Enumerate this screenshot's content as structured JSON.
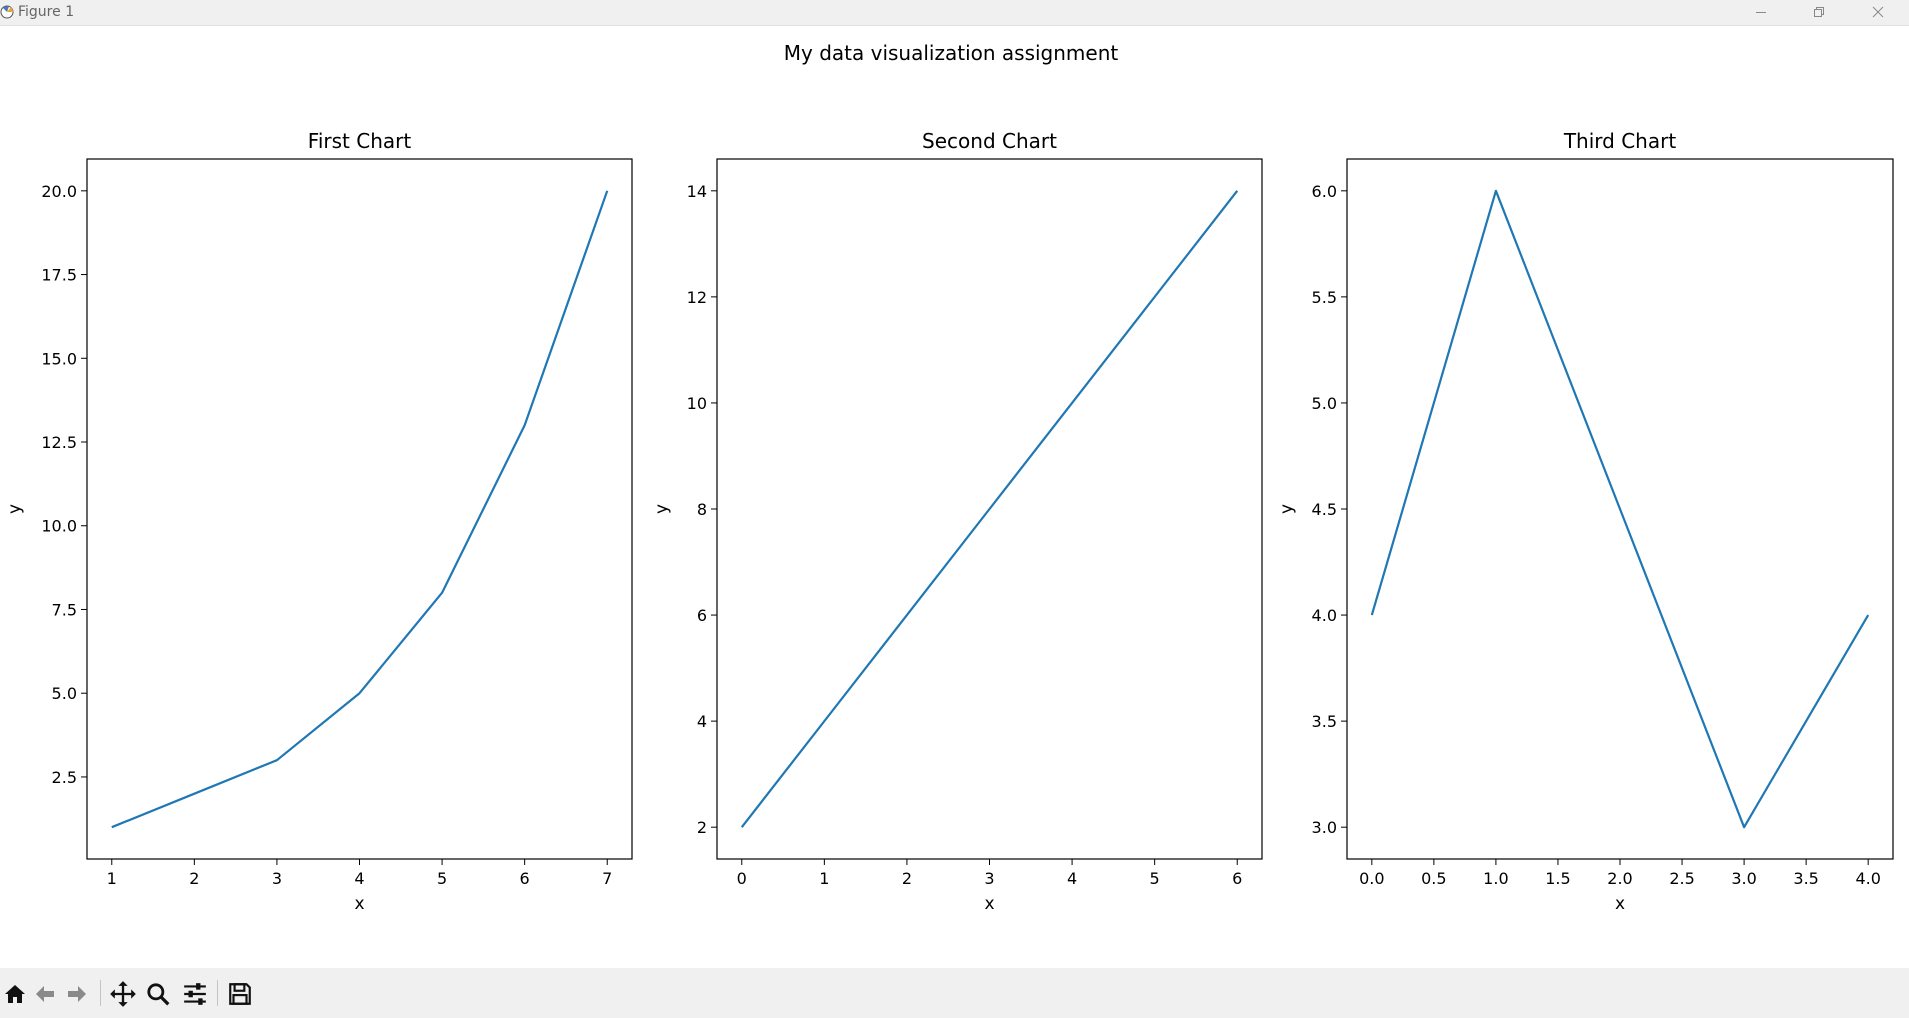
{
  "window": {
    "title": "Figure 1"
  },
  "figure": {
    "suptitle": "My data visualization assignment"
  },
  "colors": {
    "line": "#1f77b4",
    "axes": "#000000",
    "titlebar": "#f0f0f0",
    "toolbar": "#f0f0f0"
  },
  "toolbar": {
    "buttons": [
      "home-icon",
      "back-icon",
      "forward-icon",
      "pan-icon",
      "zoom-icon",
      "configure-subplots-icon",
      "save-icon"
    ]
  },
  "chart_data": [
    {
      "type": "line",
      "title": "First Chart",
      "xlabel": "x",
      "ylabel": "y",
      "x": [
        1,
        2,
        3,
        4,
        5,
        6,
        7
      ],
      "y": [
        1,
        2,
        3,
        5,
        8,
        13,
        20
      ],
      "xlim": [
        0.7,
        7.3
      ],
      "ylim": [
        0.05,
        20.95
      ],
      "xticks": [
        1,
        2,
        3,
        4,
        5,
        6,
        7
      ],
      "xtick_labels": [
        "1",
        "2",
        "3",
        "4",
        "5",
        "6",
        "7"
      ],
      "yticks": [
        2.5,
        5,
        7.5,
        10,
        12.5,
        15,
        17.5,
        20
      ],
      "ytick_labels": [
        "2.5",
        "5.0",
        "7.5",
        "10.0",
        "12.5",
        "15.0",
        "17.5",
        "20.0"
      ],
      "grid": false
    },
    {
      "type": "line",
      "title": "Second Chart",
      "xlabel": "x",
      "ylabel": "y",
      "x": [
        0,
        1,
        2,
        3,
        4,
        5,
        6
      ],
      "y": [
        2,
        4,
        6,
        8,
        10,
        12,
        14
      ],
      "xlim": [
        -0.3,
        6.3
      ],
      "ylim": [
        1.4,
        14.6
      ],
      "xticks": [
        0,
        1,
        2,
        3,
        4,
        5,
        6
      ],
      "xtick_labels": [
        "0",
        "1",
        "2",
        "3",
        "4",
        "5",
        "6"
      ],
      "yticks": [
        2,
        4,
        6,
        8,
        10,
        12,
        14
      ],
      "ytick_labels": [
        "2",
        "4",
        "6",
        "8",
        "10",
        "12",
        "14"
      ],
      "grid": false
    },
    {
      "type": "line",
      "title": "Third Chart",
      "xlabel": "x",
      "ylabel": "y",
      "x": [
        0,
        1,
        2,
        3,
        4
      ],
      "y": [
        4,
        6,
        4.5,
        3,
        4
      ],
      "xlim": [
        -0.2,
        4.2
      ],
      "ylim": [
        2.85,
        6.15
      ],
      "xticks": [
        0,
        0.5,
        1,
        1.5,
        2,
        2.5,
        3,
        3.5,
        4
      ],
      "xtick_labels": [
        "0.0",
        "0.5",
        "1.0",
        "1.5",
        "2.0",
        "2.5",
        "3.0",
        "3.5",
        "4.0"
      ],
      "yticks": [
        3,
        3.5,
        4,
        4.5,
        5,
        5.5,
        6
      ],
      "ytick_labels": [
        "3.0",
        "3.5",
        "4.0",
        "4.5",
        "5.0",
        "5.5",
        "6.0"
      ],
      "grid": false
    }
  ]
}
